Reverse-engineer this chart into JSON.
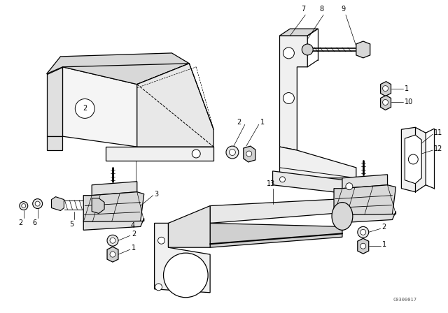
{
  "bg_color": "#ffffff",
  "line_color": "#000000",
  "watermark": "C0300017",
  "fig_width": 6.4,
  "fig_height": 4.48,
  "dpi": 100
}
